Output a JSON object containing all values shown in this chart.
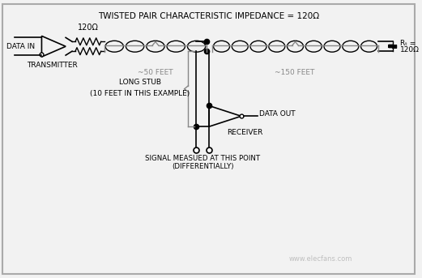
{
  "title": "TWISTED PAIR CHARACTERISTIC IMPEDANCE = 120Ω",
  "background_color": "#f2f2f2",
  "border_color": "#aaaaaa",
  "line_color": "#000000",
  "label_120ohm": "120Ω",
  "label_rt_line1": "Rₜ =",
  "label_rt_line2": "120Ω",
  "label_data_in": "DATA IN",
  "label_transmitter": "TRANSMITTER",
  "label_50feet": "~50 FEET",
  "label_150feet": "~150 FEET",
  "label_long_stub_1": "LONG STUB",
  "label_long_stub_2": "(10 FEET IN THIS EXAMPLE)",
  "label_data_out": "DATA OUT",
  "label_receiver": "RECEIVER",
  "label_signal_1": "SIGNAL MEASUED AT THIS POINT",
  "label_signal_2": "(DIFFERENTIALLY)",
  "label_watermark": "www.elecfans.com"
}
